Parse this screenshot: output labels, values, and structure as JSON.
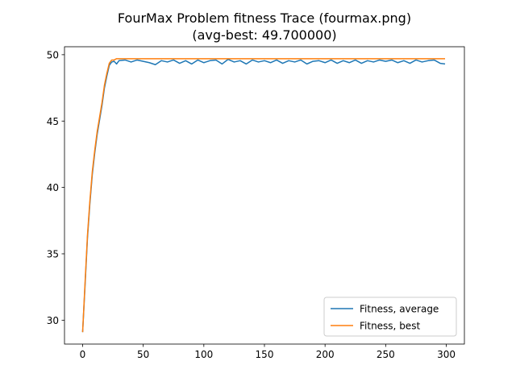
{
  "chart_data": {
    "type": "line",
    "title_line1": "FourMax Problem fitness Trace (fourmax.png)",
    "title_line2": "(avg-best: 49.700000)",
    "xlabel": "",
    "ylabel": "",
    "xlim": [
      -14.95,
      314.95
    ],
    "ylim": [
      28.2,
      50.6
    ],
    "xticks": [
      0,
      50,
      100,
      150,
      200,
      250,
      300
    ],
    "yticks": [
      30,
      35,
      40,
      45,
      50
    ],
    "legend_position": "lower-right",
    "grid": false,
    "series": [
      {
        "name": "Fitness, average",
        "color": "#1f77b4",
        "points": [
          [
            0,
            29.1
          ],
          [
            2,
            32.6
          ],
          [
            4,
            36.2
          ],
          [
            6,
            38.8
          ],
          [
            8,
            41.0
          ],
          [
            10,
            42.6
          ],
          [
            12,
            44.0
          ],
          [
            14,
            45.1
          ],
          [
            16,
            46.2
          ],
          [
            18,
            47.5
          ],
          [
            20,
            48.4
          ],
          [
            22,
            49.2
          ],
          [
            24,
            49.45
          ],
          [
            26,
            49.5
          ],
          [
            28,
            49.3
          ],
          [
            30,
            49.55
          ],
          [
            35,
            49.6
          ],
          [
            40,
            49.45
          ],
          [
            45,
            49.6
          ],
          [
            50,
            49.5
          ],
          [
            55,
            49.4
          ],
          [
            60,
            49.25
          ],
          [
            65,
            49.55
          ],
          [
            70,
            49.45
          ],
          [
            75,
            49.6
          ],
          [
            80,
            49.35
          ],
          [
            85,
            49.55
          ],
          [
            90,
            49.3
          ],
          [
            95,
            49.6
          ],
          [
            100,
            49.4
          ],
          [
            105,
            49.55
          ],
          [
            110,
            49.6
          ],
          [
            115,
            49.3
          ],
          [
            120,
            49.65
          ],
          [
            125,
            49.45
          ],
          [
            130,
            49.55
          ],
          [
            135,
            49.3
          ],
          [
            140,
            49.6
          ],
          [
            145,
            49.45
          ],
          [
            150,
            49.55
          ],
          [
            155,
            49.4
          ],
          [
            160,
            49.6
          ],
          [
            165,
            49.35
          ],
          [
            170,
            49.55
          ],
          [
            175,
            49.45
          ],
          [
            180,
            49.6
          ],
          [
            185,
            49.3
          ],
          [
            190,
            49.5
          ],
          [
            195,
            49.55
          ],
          [
            200,
            49.4
          ],
          [
            205,
            49.6
          ],
          [
            210,
            49.35
          ],
          [
            215,
            49.55
          ],
          [
            220,
            49.4
          ],
          [
            225,
            49.6
          ],
          [
            230,
            49.35
          ],
          [
            235,
            49.55
          ],
          [
            240,
            49.45
          ],
          [
            245,
            49.6
          ],
          [
            250,
            49.5
          ],
          [
            255,
            49.6
          ],
          [
            260,
            49.4
          ],
          [
            265,
            49.55
          ],
          [
            270,
            49.35
          ],
          [
            275,
            49.6
          ],
          [
            280,
            49.45
          ],
          [
            285,
            49.55
          ],
          [
            290,
            49.6
          ],
          [
            295,
            49.35
          ],
          [
            299,
            49.3
          ]
        ]
      },
      {
        "name": "Fitness, best",
        "color": "#ff7f0e",
        "points": [
          [
            0,
            29.1
          ],
          [
            2,
            32.8
          ],
          [
            4,
            36.4
          ],
          [
            6,
            39.0
          ],
          [
            8,
            41.2
          ],
          [
            10,
            42.8
          ],
          [
            12,
            44.2
          ],
          [
            14,
            45.3
          ],
          [
            16,
            46.4
          ],
          [
            18,
            47.7
          ],
          [
            20,
            48.6
          ],
          [
            22,
            49.35
          ],
          [
            24,
            49.6
          ],
          [
            26,
            49.6
          ],
          [
            28,
            49.7
          ],
          [
            299,
            49.7
          ]
        ]
      }
    ]
  }
}
